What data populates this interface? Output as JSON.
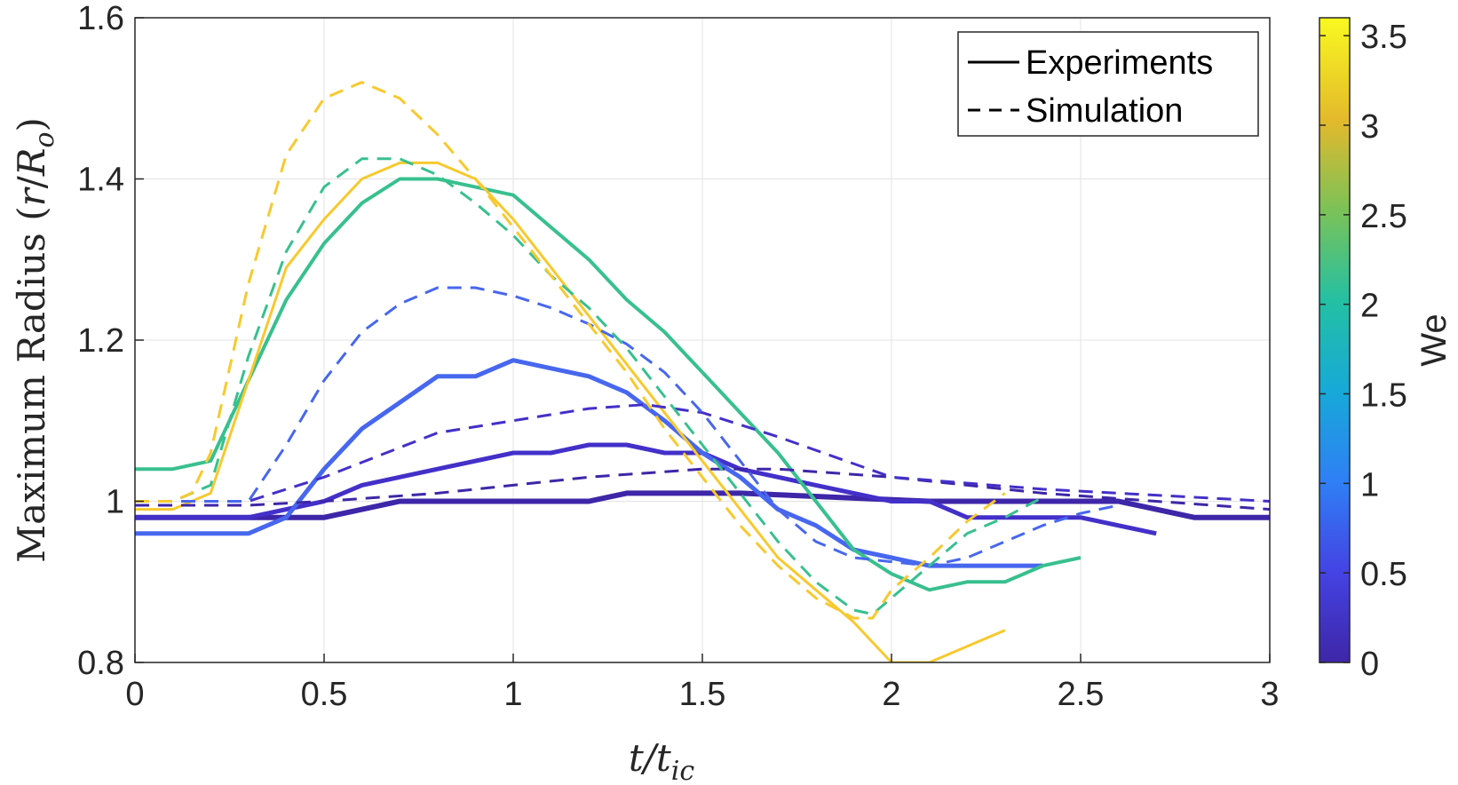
{
  "chart_data": {
    "type": "line",
    "xlabel": "t/t_ic",
    "ylabel": "Maximum Radius (r/R_o)",
    "xlim": [
      0,
      3
    ],
    "ylim": [
      0.8,
      1.6
    ],
    "xticks": [
      "0",
      "0.5",
      "1",
      "1.5",
      "2",
      "2.5",
      "3"
    ],
    "yticks": [
      "0.8",
      "1",
      "1.2",
      "1.4",
      "1.6"
    ],
    "grid": true,
    "legend": {
      "position": "top-right",
      "entries": [
        {
          "label": "Experiments",
          "style": "solid"
        },
        {
          "label": "Simulation",
          "style": "dashed"
        }
      ]
    },
    "colorbar": {
      "label": "We",
      "range": [
        0,
        3.6
      ],
      "ticks": [
        "0",
        "0.5",
        "1",
        "1.5",
        "2",
        "2.5",
        "3",
        "3.5"
      ]
    },
    "series": [
      {
        "style": "solid",
        "color": "#3e26a8",
        "width": 6,
        "x": [
          0,
          0.5,
          0.7,
          1.0,
          1.2,
          1.3,
          1.6,
          2.1,
          2.3,
          2.6,
          2.8,
          3.0
        ],
        "y": [
          0.98,
          0.98,
          1.0,
          1.0,
          1.0,
          1.01,
          1.01,
          1.0,
          1.0,
          1.0,
          0.98,
          0.98
        ]
      },
      {
        "style": "solid",
        "color": "#4330c9",
        "width": 5,
        "x": [
          0,
          0.3,
          0.5,
          0.6,
          1.0,
          1.1,
          1.2,
          1.3,
          1.4,
          1.5,
          1.6,
          1.7,
          1.8,
          1.9,
          2.0,
          2.1,
          2.2,
          2.5,
          2.7
        ],
        "y": [
          0.98,
          0.98,
          1.0,
          1.02,
          1.06,
          1.06,
          1.07,
          1.07,
          1.06,
          1.06,
          1.04,
          1.03,
          1.02,
          1.01,
          1.0,
          1.0,
          0.98,
          0.98,
          0.96
        ]
      },
      {
        "style": "solid",
        "color": "#4767ee",
        "width": 5,
        "x": [
          0,
          0.3,
          0.4,
          0.5,
          0.6,
          0.8,
          0.9,
          1.0,
          1.2,
          1.3,
          1.4,
          1.5,
          1.6,
          1.7,
          1.8,
          1.9,
          2.0,
          2.1,
          2.4
        ],
        "y": [
          0.96,
          0.96,
          0.98,
          1.04,
          1.09,
          1.155,
          1.155,
          1.175,
          1.155,
          1.135,
          1.1,
          1.06,
          1.03,
          0.99,
          0.97,
          0.94,
          0.93,
          0.92,
          0.92
        ]
      },
      {
        "style": "solid",
        "color": "#38c08e",
        "width": 4,
        "x": [
          0,
          0.1,
          0.2,
          0.3,
          0.4,
          0.5,
          0.6,
          0.7,
          0.8,
          0.9,
          1.0,
          1.2,
          1.3,
          1.4,
          1.5,
          1.6,
          1.7,
          1.8,
          1.9,
          2.0,
          2.1,
          2.2,
          2.3,
          2.4,
          2.5
        ],
        "y": [
          1.04,
          1.04,
          1.05,
          1.15,
          1.25,
          1.32,
          1.37,
          1.4,
          1.4,
          1.39,
          1.38,
          1.3,
          1.25,
          1.21,
          1.16,
          1.11,
          1.06,
          1.0,
          0.94,
          0.91,
          0.89,
          0.9,
          0.9,
          0.92,
          0.93
        ]
      },
      {
        "style": "solid",
        "color": "#f7c92e",
        "width": 3,
        "x": [
          0,
          0.1,
          0.2,
          0.3,
          0.4,
          0.5,
          0.6,
          0.7,
          0.8,
          0.9,
          1.0,
          1.1,
          1.2,
          1.3,
          1.4,
          1.5,
          1.6,
          1.7,
          1.8,
          1.9,
          2.0,
          2.1,
          2.2,
          2.3
        ],
        "y": [
          0.99,
          0.99,
          1.01,
          1.15,
          1.29,
          1.35,
          1.4,
          1.42,
          1.42,
          1.4,
          1.35,
          1.29,
          1.23,
          1.17,
          1.11,
          1.05,
          0.99,
          0.93,
          0.89,
          0.85,
          0.8,
          0.8,
          0.82,
          0.84
        ]
      },
      {
        "style": "dashed",
        "color": "#3e26a8",
        "width": 3,
        "x": [
          0,
          0.3,
          0.5,
          0.8,
          1.0,
          1.2,
          1.5,
          1.7,
          2.0,
          2.4,
          2.7,
          3.0
        ],
        "y": [
          0.995,
          0.995,
          1.0,
          1.01,
          1.02,
          1.03,
          1.04,
          1.04,
          1.03,
          1.01,
          1.0,
          0.99
        ]
      },
      {
        "style": "dashed",
        "color": "#4330c9",
        "width": 3,
        "x": [
          0,
          0.3,
          0.5,
          0.8,
          1.0,
          1.2,
          1.35,
          1.5,
          1.7,
          2.0,
          2.4,
          2.6,
          3.0
        ],
        "y": [
          1.0,
          1.0,
          1.03,
          1.085,
          1.1,
          1.115,
          1.12,
          1.11,
          1.08,
          1.03,
          1.015,
          1.01,
          1.0
        ]
      },
      {
        "style": "dashed",
        "color": "#4767ee",
        "width": 3,
        "x": [
          0,
          0.3,
          0.4,
          0.5,
          0.6,
          0.7,
          0.8,
          0.9,
          1.0,
          1.1,
          1.2,
          1.3,
          1.4,
          1.5,
          1.6,
          1.7,
          1.8,
          1.9,
          2.0,
          2.1,
          2.2,
          2.3,
          2.4,
          2.5,
          2.6
        ],
        "y": [
          1.0,
          1.0,
          1.07,
          1.15,
          1.21,
          1.245,
          1.265,
          1.265,
          1.255,
          1.24,
          1.22,
          1.195,
          1.16,
          1.11,
          1.05,
          0.99,
          0.95,
          0.93,
          0.925,
          0.92,
          0.93,
          0.95,
          0.97,
          0.985,
          0.995
        ]
      },
      {
        "style": "dashed",
        "color": "#38c08e",
        "width": 3,
        "x": [
          0,
          0.1,
          0.2,
          0.3,
          0.4,
          0.5,
          0.6,
          0.7,
          0.8,
          0.9,
          1.0,
          1.1,
          1.2,
          1.3,
          1.4,
          1.5,
          1.6,
          1.7,
          1.8,
          1.9,
          1.95,
          2.0,
          2.1,
          2.2,
          2.3,
          2.4
        ],
        "y": [
          1.0,
          1.0,
          1.02,
          1.18,
          1.31,
          1.39,
          1.425,
          1.425,
          1.405,
          1.37,
          1.33,
          1.28,
          1.24,
          1.19,
          1.13,
          1.07,
          1.01,
          0.95,
          0.9,
          0.865,
          0.86,
          0.88,
          0.92,
          0.96,
          0.98,
          1.005
        ]
      },
      {
        "style": "dashed",
        "color": "#f7c92e",
        "width": 3,
        "x": [
          0,
          0.1,
          0.15,
          0.2,
          0.3,
          0.4,
          0.5,
          0.6,
          0.7,
          0.8,
          0.9,
          1.0,
          1.1,
          1.2,
          1.3,
          1.4,
          1.5,
          1.6,
          1.7,
          1.8,
          1.9,
          1.95,
          2.0,
          2.1,
          2.2,
          2.3
        ],
        "y": [
          1.0,
          1.0,
          1.01,
          1.06,
          1.27,
          1.43,
          1.5,
          1.52,
          1.5,
          1.455,
          1.4,
          1.34,
          1.28,
          1.22,
          1.16,
          1.09,
          1.03,
          0.97,
          0.92,
          0.88,
          0.855,
          0.855,
          0.89,
          0.93,
          0.975,
          1.01
        ]
      }
    ]
  }
}
